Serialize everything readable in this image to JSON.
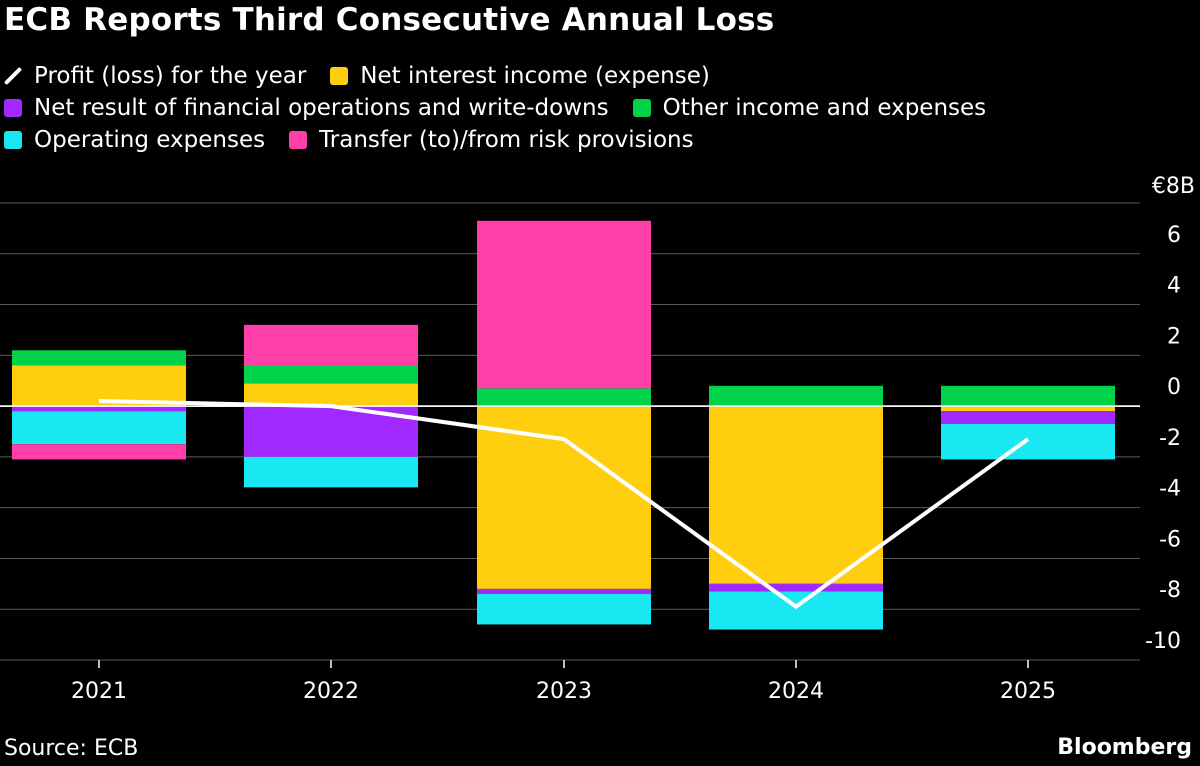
{
  "title": "ECB Reports Third Consecutive Annual Loss",
  "legend": [
    {
      "name": "Profit (loss) for the year",
      "color": "#ffffff",
      "kind": "line",
      "icon": "line-icon"
    },
    {
      "name": "Net interest income (expense)",
      "color": "#ffcf0f",
      "kind": "box",
      "icon": "square-icon"
    },
    {
      "name": "Net result of financial operations and write-downs",
      "color": "#a129ff",
      "kind": "box",
      "icon": "square-icon"
    },
    {
      "name": "Other income and expenses",
      "color": "#00d24a",
      "kind": "box",
      "icon": "square-icon"
    },
    {
      "name": "Operating expenses",
      "color": "#19e8f3",
      "kind": "box",
      "icon": "square-icon"
    },
    {
      "name": "Transfer (to)/from risk provisions",
      "color": "#ff3fa8",
      "kind": "box",
      "icon": "square-icon"
    }
  ],
  "source": "Source: ECB",
  "brand": "Bloomberg",
  "chart_data": {
    "type": "bar",
    "stacked": true,
    "title": "ECB Reports Third Consecutive Annual Loss",
    "unit_label": "€8B",
    "categories": [
      "2021",
      "2022",
      "2023",
      "2024",
      "2025"
    ],
    "ylim": [
      -10,
      8
    ],
    "yticks": [
      6,
      4,
      2,
      0,
      -2,
      -4,
      -6,
      -8,
      -10
    ],
    "ytick_labels": [
      "6",
      "4",
      "2",
      "0",
      "-2",
      "-4",
      "-6",
      "-8",
      "-10"
    ],
    "grid": true,
    "series": [
      {
        "name": "Net interest income (expense)",
        "color": "#ffcf0f",
        "values": [
          1.6,
          0.9,
          -7.2,
          -7.0,
          -0.2
        ]
      },
      {
        "name": "Net result of financial operations and write-downs",
        "color": "#a129ff",
        "values": [
          -0.2,
          -2.0,
          -0.2,
          -0.3,
          -0.5
        ]
      },
      {
        "name": "Other income and expenses",
        "color": "#00d24a",
        "values": [
          0.6,
          0.7,
          0.7,
          0.8,
          0.8
        ]
      },
      {
        "name": "Operating expenses",
        "color": "#19e8f3",
        "values": [
          -1.3,
          -1.2,
          -1.2,
          -1.5,
          -1.4
        ]
      },
      {
        "name": "Transfer (to)/from risk provisions",
        "color": "#ff3fa8",
        "values": [
          -0.6,
          1.6,
          6.6,
          0.0,
          0.0
        ]
      }
    ],
    "line": {
      "name": "Profit (loss) for the year",
      "color": "#ffffff",
      "values": [
        0.2,
        0.0,
        -1.3,
        -7.9,
        -1.3
      ]
    }
  }
}
